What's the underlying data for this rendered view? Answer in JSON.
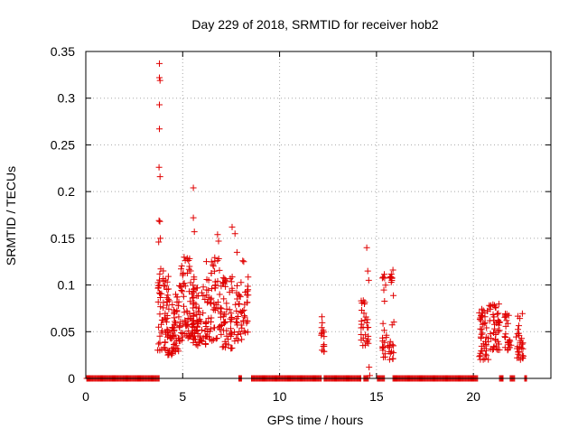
{
  "chart_data": {
    "type": "scatter",
    "title": "Day 229 of 2018, SRMTID for receiver hob2",
    "xlabel": "GPS time / hours",
    "ylabel": "SRMTID / TECUs",
    "xlim": [
      0,
      24
    ],
    "ylim": [
      0,
      0.35
    ],
    "xticks": [
      0,
      5,
      10,
      15,
      20
    ],
    "xtick_labels": [
      "0",
      "5",
      "10",
      "15",
      "20"
    ],
    "yticks": [
      0,
      0.05,
      0.1,
      0.15,
      0.2,
      0.25,
      0.3,
      0.35
    ],
    "ytick_labels": [
      "0",
      "0.05",
      "0.1",
      "0.15",
      "0.2",
      "0.25",
      "0.3",
      "0.35"
    ],
    "grid": true,
    "marker": "+",
    "color": "#e00000",
    "zero_segments": [
      [
        0.05,
        3.8
      ],
      [
        7.9,
        8.05
      ],
      [
        8.55,
        12.15
      ],
      [
        12.3,
        14.2
      ],
      [
        14.35,
        14.6
      ],
      [
        15.05,
        15.45
      ],
      [
        15.85,
        20.25
      ],
      [
        21.35,
        21.55
      ],
      [
        21.9,
        22.15
      ],
      [
        22.65,
        22.75
      ]
    ],
    "clusters": [
      {
        "x": [
          3.7,
          4.3
        ],
        "y": [
          0.03,
          0.12
        ],
        "n": 60
      },
      {
        "x": [
          4.2,
          4.8
        ],
        "y": [
          0.025,
          0.09
        ],
        "n": 60
      },
      {
        "x": [
          4.8,
          5.6
        ],
        "y": [
          0.04,
          0.13
        ],
        "n": 80
      },
      {
        "x": [
          5.5,
          6.2
        ],
        "y": [
          0.035,
          0.1
        ],
        "n": 60
      },
      {
        "x": [
          6.2,
          7.0
        ],
        "y": [
          0.04,
          0.13
        ],
        "n": 70
      },
      {
        "x": [
          7.0,
          7.6
        ],
        "y": [
          0.03,
          0.11
        ],
        "n": 50
      },
      {
        "x": [
          7.6,
          8.4
        ],
        "y": [
          0.04,
          0.11
        ],
        "n": 50
      },
      {
        "x": [
          12.15,
          12.3
        ],
        "y": [
          0.028,
          0.06
        ],
        "n": 14
      },
      {
        "x": [
          14.2,
          14.6
        ],
        "y": [
          0.035,
          0.09
        ],
        "n": 28
      },
      {
        "x": [
          15.3,
          15.9
        ],
        "y": [
          0.02,
          0.115
        ],
        "n": 45
      },
      {
        "x": [
          20.3,
          20.8
        ],
        "y": [
          0.02,
          0.075
        ],
        "n": 45
      },
      {
        "x": [
          20.8,
          21.4
        ],
        "y": [
          0.03,
          0.08
        ],
        "n": 45
      },
      {
        "x": [
          21.6,
          21.95
        ],
        "y": [
          0.03,
          0.07
        ],
        "n": 24
      },
      {
        "x": [
          22.2,
          22.6
        ],
        "y": [
          0.02,
          0.07
        ],
        "n": 30
      }
    ],
    "highlights": [
      {
        "x": 3.8,
        "y": 0.337
      },
      {
        "x": 3.8,
        "y": 0.322
      },
      {
        "x": 3.83,
        "y": 0.319
      },
      {
        "x": 3.8,
        "y": 0.293
      },
      {
        "x": 3.8,
        "y": 0.267
      },
      {
        "x": 3.78,
        "y": 0.226
      },
      {
        "x": 3.83,
        "y": 0.216
      },
      {
        "x": 3.78,
        "y": 0.169
      },
      {
        "x": 3.82,
        "y": 0.168
      },
      {
        "x": 3.76,
        "y": 0.146
      },
      {
        "x": 3.85,
        "y": 0.15
      },
      {
        "x": 5.55,
        "y": 0.204
      },
      {
        "x": 5.55,
        "y": 0.172
      },
      {
        "x": 5.6,
        "y": 0.157
      },
      {
        "x": 6.8,
        "y": 0.154
      },
      {
        "x": 6.85,
        "y": 0.147
      },
      {
        "x": 7.55,
        "y": 0.162
      },
      {
        "x": 7.7,
        "y": 0.155
      },
      {
        "x": 7.8,
        "y": 0.135
      },
      {
        "x": 8.1,
        "y": 0.126
      },
      {
        "x": 8.15,
        "y": 0.125
      },
      {
        "x": 12.18,
        "y": 0.066
      },
      {
        "x": 14.5,
        "y": 0.14
      },
      {
        "x": 14.55,
        "y": 0.115
      },
      {
        "x": 14.6,
        "y": 0.105
      },
      {
        "x": 14.62,
        "y": 0.012
      },
      {
        "x": 14.65,
        "y": 0.003
      },
      {
        "x": 15.85,
        "y": 0.116
      },
      {
        "x": 15.8,
        "y": 0.108
      }
    ]
  }
}
